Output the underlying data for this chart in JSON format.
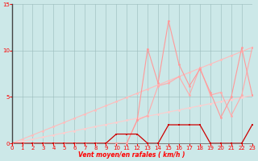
{
  "x": [
    0,
    1,
    2,
    3,
    4,
    5,
    6,
    7,
    8,
    9,
    10,
    11,
    12,
    13,
    14,
    15,
    16,
    17,
    18,
    19,
    20,
    21,
    22,
    23
  ],
  "line_spike1_y": [
    0,
    0,
    0,
    0,
    0,
    0,
    0,
    0,
    0,
    0,
    0,
    0,
    2.5,
    10.2,
    6.5,
    13.2,
    8.5,
    6.2,
    8.0,
    5.5,
    2.8,
    5.0,
    10.3,
    5.2
  ],
  "line_spike2_y": [
    0,
    0,
    0,
    0,
    0,
    0,
    0,
    0,
    0,
    0,
    0,
    0,
    2.5,
    3.0,
    6.2,
    6.5,
    7.2,
    5.2,
    8.2,
    5.2,
    5.5,
    3.0,
    5.2,
    10.3
  ],
  "line_upper_y": [
    0,
    0.45,
    0.9,
    1.35,
    1.8,
    2.25,
    2.7,
    3.15,
    3.6,
    4.05,
    4.5,
    4.95,
    5.4,
    5.85,
    6.3,
    6.75,
    7.2,
    7.65,
    8.1,
    8.55,
    9.0,
    9.45,
    9.9,
    10.35
  ],
  "line_lower_y": [
    0,
    0.23,
    0.45,
    0.68,
    0.9,
    1.13,
    1.35,
    1.58,
    1.8,
    2.03,
    2.25,
    2.48,
    2.7,
    2.93,
    3.15,
    3.38,
    3.6,
    3.83,
    4.05,
    4.28,
    4.5,
    4.73,
    4.95,
    5.18
  ],
  "dark_y": [
    0,
    0,
    0,
    0,
    0,
    0,
    0,
    0,
    0,
    0,
    1,
    1,
    1,
    0,
    0,
    2,
    2,
    2,
    2,
    0,
    0,
    0,
    0,
    2
  ],
  "bg_color": "#cce8e8",
  "grid_color": "#99bbbb",
  "xlabel": "Vent moyen/en rafales ( km/h )",
  "ylim": [
    0,
    15
  ],
  "xlim": [
    0,
    23
  ],
  "yticks": [
    0,
    5,
    10,
    15
  ],
  "xticks": [
    0,
    1,
    2,
    3,
    4,
    5,
    6,
    7,
    8,
    9,
    10,
    11,
    12,
    13,
    14,
    15,
    16,
    17,
    18,
    19,
    20,
    21,
    22,
    23
  ],
  "color_spike1": "#ff9999",
  "color_spike2": "#ffaaaa",
  "color_upper": "#ffbbbb",
  "color_lower": "#ffcccc",
  "color_dark": "#cc0000",
  "lw": 0.8,
  "ms": 2.0
}
